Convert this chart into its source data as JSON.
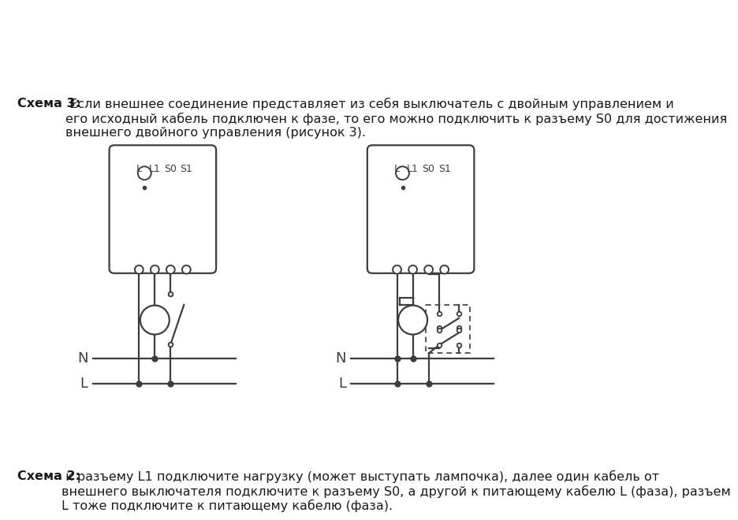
{
  "background_color": "#ffffff",
  "text_color": "#1a1a1a",
  "line_color": "#3d3d3d",
  "title_bold": "Схема 2:",
  "title_normal": " к разъему L1 подключите нагрузку (может выступать лампочка), далее один кабель от\nвнешнего выключателя подключите к разъему S0, а другой к питающему кабелю L (фаза), разъем\nL тоже подключите к питающему кабелю (фаза).",
  "bottom_bold": "Схема 3:",
  "bottom_normal": " Если внешнее соединение представляет из себя выключатель с двойным управлением и\nего исходный кабель подключен к фазе, то его можно подключить к разъему S0 для достижения\nвнешнего двойного управления (рисунок 3).",
  "lw": 1.6,
  "dot_size": 5,
  "terminal_r": 0.007
}
